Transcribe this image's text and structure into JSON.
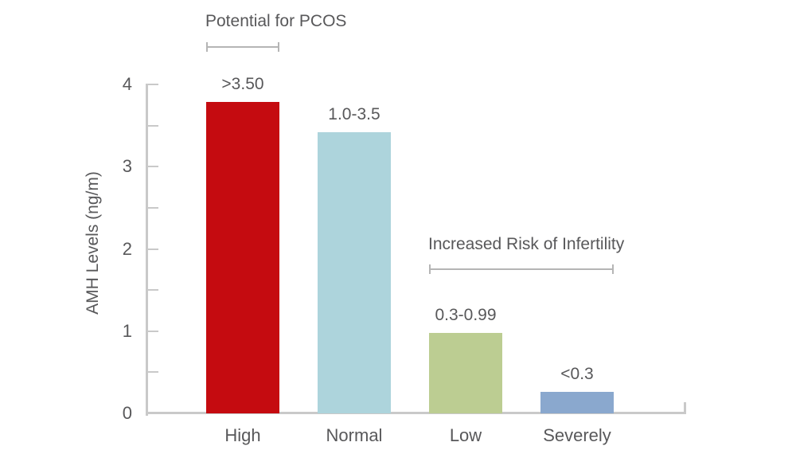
{
  "page": {
    "background": "#ffffff"
  },
  "colors": {
    "axis": "#c9c9c9",
    "bracket": "#b5b5b5",
    "text": "#58585a",
    "background": "#ffffff"
  },
  "chart_data": {
    "type": "bar",
    "title": "",
    "xlabel": "",
    "ylabel": "AMH Levels (ng/m)",
    "ylim": [
      0,
      4
    ],
    "yticks": [
      0,
      1,
      2,
      3,
      4
    ],
    "minor_tick_step": 0.5,
    "grid": false,
    "legend": false,
    "categories": [
      "High",
      "Normal",
      "Low",
      "Severely"
    ],
    "series": [
      {
        "name": "AMH Levels",
        "values": [
          3.79,
          3.42,
          0.98,
          0.26
        ]
      }
    ],
    "bar_value_labels": [
      ">3.50",
      "1.0-3.5",
      "0.3-0.99",
      "<0.3"
    ],
    "bar_colors": [
      "#c50b10",
      "#add4dc",
      "#bccd92",
      "#8aa8ce"
    ],
    "annotations": [
      {
        "text": "Potential for PCOS",
        "covers_categories": [
          "High"
        ]
      },
      {
        "text": "Increased Risk of Infertility",
        "covers_categories": [
          "Low",
          "Severely"
        ]
      }
    ]
  }
}
